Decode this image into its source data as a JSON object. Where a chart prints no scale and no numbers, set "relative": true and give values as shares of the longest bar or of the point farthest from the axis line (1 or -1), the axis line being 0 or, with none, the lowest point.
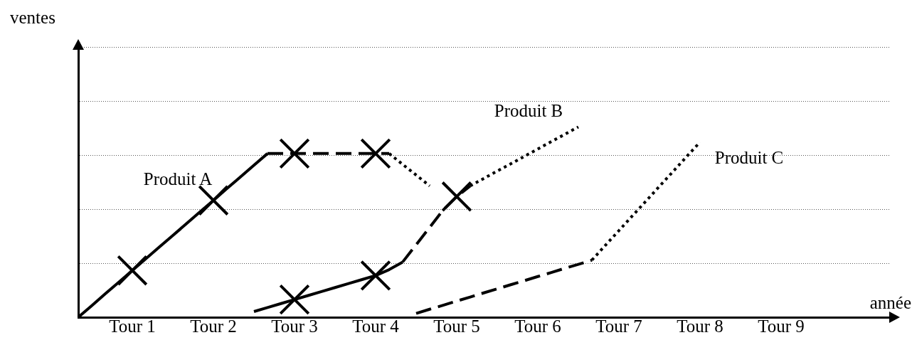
{
  "chart_data": {
    "type": "line",
    "xlabel": "année",
    "annotations": [
      "ventes"
    ],
    "relative": true,
    "grid": "y",
    "categories": [
      null,
      null,
      null,
      null,
      "Tour 1",
      null,
      null,
      null,
      null,
      null,
      "Tour 2",
      null,
      null,
      null,
      null,
      null,
      "Tour 3",
      null,
      null,
      null,
      null,
      null,
      "Tour 4",
      null,
      null,
      null,
      null,
      null,
      "Tour 5",
      null,
      null,
      null,
      null,
      null,
      "Tour 6",
      null,
      null,
      null,
      null,
      null,
      "Tour 7",
      null,
      null,
      null,
      null,
      null,
      "Tour 8",
      null,
      null,
      null,
      null,
      null,
      "Tour 9",
      null,
      null,
      null,
      null,
      null,
      null,
      null,
      null
    ],
    "series": [
      {
        "name": "Produit A",
        "color": "#000000",
        "line_style": "solid",
        "values": [
          0,
          0.061,
          0.123,
          0.184,
          0.246,
          0.307,
          0.369,
          0.43,
          0.491,
          0.553,
          0.614,
          0.676,
          0.737,
          0.799,
          0.86,
          null,
          null,
          null,
          null,
          null,
          null,
          null,
          null,
          null,
          null,
          null,
          null,
          null,
          null,
          null,
          null,
          null,
          null,
          null,
          null,
          null,
          null,
          null,
          null,
          null,
          null,
          null,
          null,
          null,
          null,
          null,
          null,
          null,
          null,
          null,
          null,
          null,
          null,
          null,
          null,
          null,
          null,
          null,
          null,
          null,
          null
        ]
      },
      {
        "color": "#000000",
        "line_style": "dashed",
        "values": [
          null,
          null,
          null,
          null,
          null,
          null,
          null,
          null,
          null,
          null,
          null,
          null,
          null,
          null,
          0.86,
          0.86,
          0.86,
          0.86,
          0.86,
          0.86,
          0.86,
          0.86,
          0.86,
          0.86,
          null,
          null,
          null,
          null,
          null,
          null,
          null,
          null,
          null,
          null,
          null,
          null,
          null,
          null,
          null,
          null,
          null,
          null,
          null,
          null,
          null,
          null,
          null,
          null,
          null,
          null,
          null,
          null,
          null,
          null,
          null,
          null,
          null,
          null,
          null,
          null,
          null
        ]
      },
      {
        "color": "#000000",
        "line_style": "dotted",
        "values": [
          null,
          null,
          null,
          null,
          null,
          null,
          null,
          null,
          null,
          null,
          null,
          null,
          null,
          null,
          null,
          null,
          null,
          null,
          null,
          null,
          null,
          null,
          null,
          0.86,
          0.803,
          0.747,
          0.69,
          null,
          null,
          null,
          null,
          null,
          null,
          null,
          null,
          null,
          null,
          null,
          null,
          null,
          null,
          null,
          null,
          null,
          null,
          null,
          null,
          null,
          null,
          null,
          null,
          null,
          null,
          null,
          null,
          null,
          null,
          null,
          null,
          null,
          null
        ]
      },
      {
        "color": "#000000",
        "line_style": "solid",
        "values": [
          null,
          null,
          null,
          null,
          null,
          null,
          null,
          null,
          null,
          null,
          null,
          null,
          null,
          0.03,
          0.051,
          0.072,
          0.093,
          0.114,
          0.135,
          0.156,
          0.177,
          0.198,
          0.219,
          0.25,
          0.29,
          null,
          null,
          null,
          null,
          null,
          null,
          null,
          null,
          null,
          null,
          null,
          null,
          null,
          null,
          null,
          null,
          null,
          null,
          null,
          null,
          null,
          null,
          null,
          null,
          null,
          null,
          null,
          null,
          null,
          null,
          null,
          null,
          null,
          null,
          null,
          null
        ]
      },
      {
        "color": "#000000",
        "line_style": "dashed",
        "values": [
          null,
          null,
          null,
          null,
          null,
          null,
          null,
          null,
          null,
          null,
          null,
          null,
          null,
          null,
          null,
          null,
          null,
          null,
          null,
          null,
          null,
          null,
          null,
          null,
          0.29,
          0.381,
          0.472,
          0.564,
          0.634,
          0.69,
          null,
          null,
          null,
          null,
          null,
          null,
          null,
          null,
          null,
          null,
          null,
          null,
          null,
          null,
          null,
          null,
          null,
          null,
          null,
          null,
          null,
          null,
          null,
          null,
          null,
          null,
          null,
          null,
          null,
          null,
          null
        ]
      },
      {
        "name": "Produit B",
        "color": "#000000",
        "line_style": "dotted",
        "values": [
          null,
          null,
          null,
          null,
          null,
          null,
          null,
          null,
          null,
          null,
          null,
          null,
          null,
          null,
          null,
          null,
          null,
          null,
          null,
          null,
          null,
          null,
          null,
          null,
          null,
          null,
          null,
          null,
          null,
          0.69,
          0.729,
          0.768,
          0.806,
          0.845,
          0.884,
          0.923,
          0.961,
          1,
          null,
          null,
          null,
          null,
          null,
          null,
          null,
          null,
          null,
          null,
          null,
          null,
          null,
          null,
          null,
          null,
          null,
          null,
          null,
          null,
          null,
          null,
          null
        ]
      },
      {
        "color": "#000000",
        "line_style": "dashed",
        "values": [
          null,
          null,
          null,
          null,
          null,
          null,
          null,
          null,
          null,
          null,
          null,
          null,
          null,
          null,
          null,
          null,
          null,
          null,
          null,
          null,
          null,
          null,
          null,
          null,
          null,
          0.02,
          0.042,
          0.063,
          0.085,
          0.106,
          0.128,
          0.149,
          0.171,
          0.192,
          0.214,
          0.235,
          0.257,
          0.278,
          0.3,
          null,
          null,
          null,
          null,
          null,
          null,
          null,
          null,
          null,
          null,
          null,
          null,
          null,
          null,
          null,
          null,
          null,
          null,
          null,
          null,
          null,
          null
        ]
      },
      {
        "name": "Produit C",
        "color": "#000000",
        "line_style": "dotted",
        "values": [
          null,
          null,
          null,
          null,
          null,
          null,
          null,
          null,
          null,
          null,
          null,
          null,
          null,
          null,
          null,
          null,
          null,
          null,
          null,
          null,
          null,
          null,
          null,
          null,
          null,
          null,
          null,
          null,
          null,
          null,
          null,
          null,
          null,
          null,
          null,
          null,
          null,
          null,
          0.3,
          0.378,
          0.455,
          0.533,
          0.61,
          0.688,
          0.765,
          0.843,
          0.92,
          null,
          null,
          null,
          null,
          null,
          null,
          null,
          null,
          null,
          null,
          null,
          null,
          null,
          null
        ]
      },
      {
        "type": "scatter",
        "color": "#000000",
        "marker": "cross",
        "values": [
          null,
          null,
          null,
          null,
          0.246,
          null,
          null,
          null,
          null,
          null,
          0.614,
          null,
          null,
          null,
          null,
          null,
          0.86,
          null,
          null,
          null,
          null,
          null,
          0.86,
          null,
          null,
          null,
          null,
          null,
          null,
          null,
          null,
          null,
          null,
          null,
          null,
          null,
          null,
          null,
          null,
          null,
          null,
          null,
          null,
          null,
          null,
          null,
          null,
          null,
          null,
          null,
          null,
          null,
          null,
          null,
          null,
          null,
          null,
          null,
          null,
          null,
          null
        ]
      },
      {
        "type": "scatter",
        "color": "#000000",
        "marker": "cross",
        "values": [
          null,
          null,
          null,
          null,
          null,
          null,
          null,
          null,
          null,
          null,
          null,
          null,
          null,
          null,
          null,
          null,
          0.093,
          null,
          null,
          null,
          null,
          null,
          0.219,
          null,
          null,
          null,
          null,
          null,
          0.634,
          null,
          null,
          null,
          null,
          null,
          null,
          null,
          null,
          null,
          null,
          null,
          null,
          null,
          null,
          null,
          null,
          null,
          null,
          null,
          null,
          null,
          null,
          null,
          null,
          null,
          null,
          null,
          null,
          null,
          null,
          null,
          null
        ]
      }
    ]
  }
}
